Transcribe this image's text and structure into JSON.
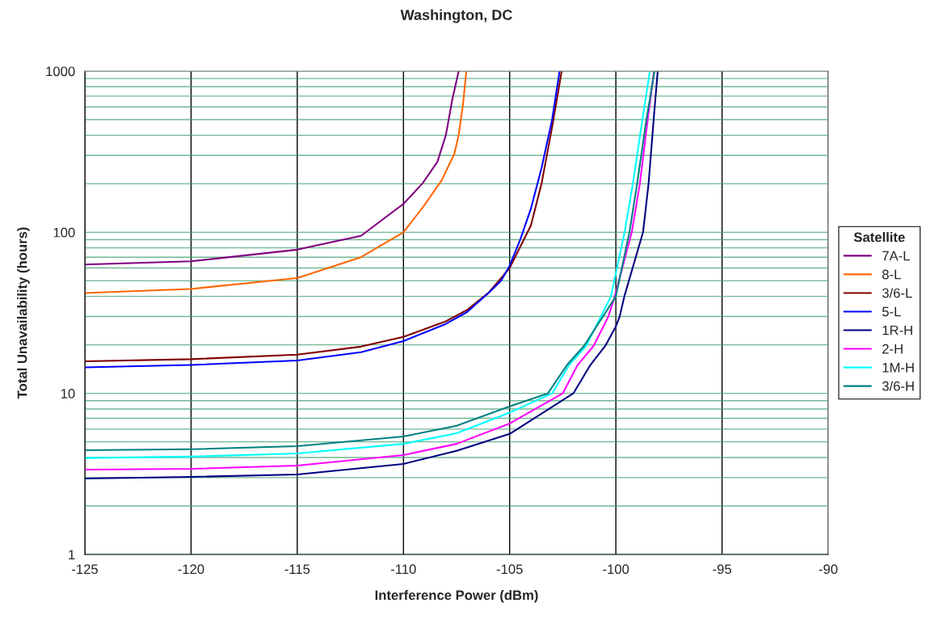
{
  "chart_data": {
    "type": "line",
    "title": "Washington, DC",
    "xlabel": "Interference Power (dBm)",
    "ylabel": "Total Unavailability (hours)",
    "legend_title": "Satellite",
    "legend": "right",
    "grid": true,
    "log": "y",
    "marker": "none",
    "line_style": "solid",
    "xlim": [
      -125,
      -90
    ],
    "xticks": [
      -125,
      -120,
      -115,
      -110,
      -105,
      -100,
      -95,
      -90
    ],
    "ylim": [
      1,
      1000
    ],
    "yticks": [
      1,
      10,
      100,
      1000
    ],
    "series": [
      {
        "name": "7A-L",
        "color": "#800080",
        "x": [
          -125,
          -120,
          -115,
          -112,
          -110,
          -109.1,
          -108.4,
          -108.0,
          -107.7,
          -107.4
        ],
        "values": [
          63,
          66,
          78,
          95,
          150,
          201,
          274,
          402,
          667,
          1000
        ]
      },
      {
        "name": "8-L",
        "color": "#ff6600",
        "x": [
          -125,
          -120,
          -115,
          -112,
          -110,
          -109.1,
          -108.2,
          -107.6,
          -107.4,
          -107.2,
          -107.04
        ],
        "values": [
          42,
          44.5,
          52,
          70,
          100,
          142,
          210,
          308,
          402,
          615,
          1000
        ]
      },
      {
        "name": "3/6-L",
        "color": "#800000",
        "x": [
          -125,
          -120,
          -115,
          -112,
          -110,
          -108,
          -107,
          -106,
          -105,
          -104,
          -103.5,
          -103,
          -102.55
        ],
        "values": [
          15.8,
          16.3,
          17.4,
          19.5,
          22.4,
          28,
          33,
          42,
          60,
          110,
          200,
          450,
          1000
        ]
      },
      {
        "name": "5-L",
        "color": "#0000ff",
        "x": [
          -125,
          -120,
          -115,
          -112,
          -110,
          -108,
          -107,
          -106,
          -105.4,
          -105,
          -104.5,
          -104,
          -103.5,
          -103,
          -102.65
        ],
        "values": [
          14.5,
          15,
          16,
          18,
          21.1,
          27,
          32,
          42,
          50,
          62,
          90,
          140,
          250,
          500,
          1000
        ]
      },
      {
        "name": "1R-H",
        "color": "#000080",
        "x": [
          -125,
          -120,
          -115,
          -110,
          -107.5,
          -105,
          -102,
          -101.2,
          -100.5,
          -100,
          -99.82,
          -99.6,
          -98.72,
          -98.46,
          -98.22,
          -98.03
        ],
        "values": [
          2.96,
          3.03,
          3.14,
          3.65,
          4.4,
          5.6,
          10,
          15,
          19.7,
          26,
          30,
          40,
          100,
          200,
          500,
          1000
        ]
      },
      {
        "name": "2-H",
        "color": "#ff00ff",
        "x": [
          -125,
          -120,
          -115,
          -110,
          -107.5,
          -105,
          -102.5,
          -101.8,
          -101.05,
          -100.35,
          -100.05,
          -99.25,
          -98.87,
          -98.5,
          -98.2
        ],
        "values": [
          3.36,
          3.4,
          3.56,
          4.14,
          4.86,
          6.5,
          10,
          15,
          19.7,
          30,
          40,
          100,
          200,
          500,
          1000
        ]
      },
      {
        "name": "1M-H",
        "color": "#00ffff",
        "x": [
          -125,
          -120,
          -115,
          -110,
          -107.5,
          -105,
          -103.0,
          -102.2,
          -101.4,
          -100.23,
          -99.59,
          -99.2,
          -98.75,
          -98.4
        ],
        "values": [
          3.97,
          4.05,
          4.24,
          4.86,
          5.66,
          7.6,
          10,
          15,
          19.7,
          40,
          100,
          200,
          500,
          1000
        ]
      },
      {
        "name": "3/6-H",
        "color": "#008080",
        "x": [
          -125,
          -120,
          -115,
          -110,
          -107.5,
          -105,
          -103.2,
          -102.3,
          -101.5,
          -100.0,
          -99.36,
          -99.0,
          -98.56,
          -98.18
        ],
        "values": [
          4.44,
          4.5,
          4.7,
          5.4,
          6.3,
          8.3,
          10,
          15,
          19.7,
          40,
          100,
          200,
          500,
          1000
        ]
      }
    ]
  }
}
